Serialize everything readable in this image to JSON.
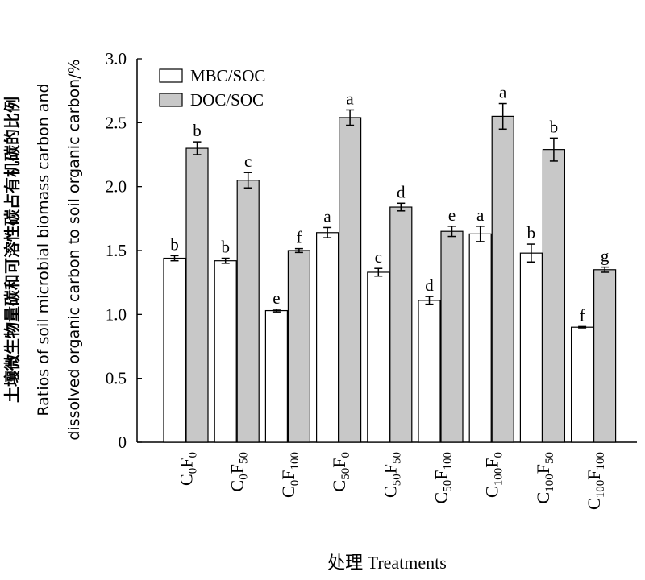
{
  "chart_data": {
    "type": "bar",
    "categories": [
      {
        "base": "C",
        "sub1": "0",
        "mid": "F",
        "sub2": "0"
      },
      {
        "base": "C",
        "sub1": "0",
        "mid": "F",
        "sub2": "50"
      },
      {
        "base": "C",
        "sub1": "0",
        "mid": "F",
        "sub2": "100"
      },
      {
        "base": "C",
        "sub1": "50",
        "mid": "F",
        "sub2": "0"
      },
      {
        "base": "C",
        "sub1": "50",
        "mid": "F",
        "sub2": "50"
      },
      {
        "base": "C",
        "sub1": "50",
        "mid": "F",
        "sub2": "100"
      },
      {
        "base": "C",
        "sub1": "100",
        "mid": "F",
        "sub2": "0"
      },
      {
        "base": "C",
        "sub1": "100",
        "mid": "F",
        "sub2": "50"
      },
      {
        "base": "C",
        "sub1": "100",
        "mid": "F",
        "sub2": "100"
      }
    ],
    "series": [
      {
        "name": "MBC/SOC",
        "color": "#ffffff",
        "values": [
          1.44,
          1.42,
          1.03,
          1.64,
          1.33,
          1.11,
          1.63,
          1.48,
          0.9
        ],
        "errors": [
          0.02,
          0.02,
          0.01,
          0.04,
          0.03,
          0.03,
          0.06,
          0.07,
          0.005
        ],
        "letters": [
          "b",
          "b",
          "e",
          "a",
          "c",
          "d",
          "a",
          "b",
          "f"
        ]
      },
      {
        "name": "DOC/SOC",
        "color": "#c8c8c8",
        "values": [
          2.3,
          2.05,
          1.5,
          2.54,
          1.84,
          1.65,
          2.55,
          2.29,
          1.35
        ],
        "errors": [
          0.05,
          0.06,
          0.015,
          0.06,
          0.03,
          0.04,
          0.1,
          0.09,
          0.02
        ],
        "letters": [
          "b",
          "c",
          "f",
          "a",
          "d",
          "e",
          "a",
          "b",
          "g"
        ]
      }
    ],
    "ylim": [
      0,
      3.0
    ],
    "yticks": [
      "0",
      "0.5",
      "1.0",
      "1.5",
      "2.0",
      "2.5",
      "3.0"
    ],
    "ytick_values": [
      0,
      0.5,
      1.0,
      1.5,
      2.0,
      2.5,
      3.0
    ],
    "xlabel": "处理 Treatments",
    "ylabel_lines": [
      "土壤微生物量碳和可溶性碳占有机碳的比例",
      "Ratios of soil microbial biomass carbon and",
      "dissolved organic carbon to soil organic carbon/%"
    ],
    "legend_position": "top-left",
    "grid": false
  }
}
